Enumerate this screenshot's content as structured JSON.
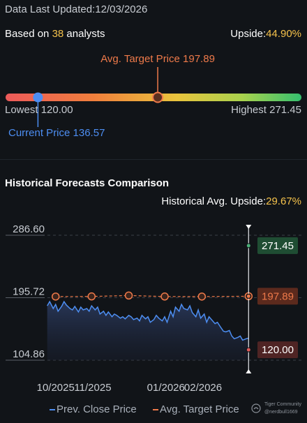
{
  "header": {
    "updated_label": "Data Last Updated:",
    "updated_date": "12/03/2026",
    "based_on_prefix": "Based on",
    "analyst_count": "38",
    "based_on_suffix": "analysts",
    "upside_label": "Upside:",
    "upside_value": "44.90%"
  },
  "range": {
    "avg_target_label": "Avg. Target Price",
    "avg_target_value": "197.89",
    "lowest_label": "Lowest",
    "lowest_value": "120.00",
    "highest_label": "Highest",
    "highest_value": "271.45",
    "current_label": "Current Price",
    "current_value": "136.57",
    "low": 120.0,
    "high": 271.45,
    "current": 136.57,
    "target": 197.89
  },
  "history": {
    "title": "Historical Forecasts Comparison",
    "upside_label": "Historical Avg. Upside:",
    "upside_value": "29.67%"
  },
  "legend": {
    "close_label": "Prev. Close Price",
    "target_label": "Avg. Target Price"
  },
  "watermark": {
    "line1": "Tiger Community",
    "line2": "@nerdbull1669"
  },
  "colors": {
    "close": "#4d8ef2",
    "target": "#ef7a4a",
    "high_badge": "#1f4d33",
    "target_badge": "#5c2a1d",
    "low_badge": "#4f2424"
  },
  "chart_data": {
    "type": "line",
    "ylim": [
      104.86,
      286.6
    ],
    "y_ticks": [
      "286.60",
      "195.72",
      "104.86"
    ],
    "x_ticks": [
      "10/2025",
      "11/2025",
      "01/2026",
      "02/2026"
    ],
    "x_tick_positions": [
      "2025-10-01",
      "2025-11-01",
      "2026-01-01",
      "2026-02-01"
    ],
    "x_range": [
      "2025-09-23",
      "2026-03-12"
    ],
    "series": [
      {
        "name": "Prev. Close Price",
        "dates": [
          "2025-09-24",
          "2025-09-26",
          "2025-09-29",
          "2025-10-01",
          "2025-10-03",
          "2025-10-06",
          "2025-10-08",
          "2025-10-10",
          "2025-10-13",
          "2025-10-15",
          "2025-10-17",
          "2025-10-20",
          "2025-10-22",
          "2025-10-24",
          "2025-10-27",
          "2025-10-29",
          "2025-10-31",
          "2025-11-03",
          "2025-11-05",
          "2025-11-07",
          "2025-11-10",
          "2025-11-12",
          "2025-11-14",
          "2025-11-17",
          "2025-11-19",
          "2025-11-21",
          "2025-11-24",
          "2025-11-26",
          "2025-11-28",
          "2025-12-01",
          "2025-12-03",
          "2025-12-05",
          "2025-12-08",
          "2025-12-10",
          "2025-12-12",
          "2025-12-15",
          "2025-12-17",
          "2025-12-19",
          "2025-12-22",
          "2025-12-24",
          "2025-12-26",
          "2025-12-29",
          "2025-12-31",
          "2026-01-02",
          "2026-01-05",
          "2026-01-07",
          "2026-01-09",
          "2026-01-12",
          "2026-01-14",
          "2026-01-16",
          "2026-01-19",
          "2026-01-21",
          "2026-01-23",
          "2026-01-26",
          "2026-01-28",
          "2026-01-30",
          "2026-02-02",
          "2026-02-04",
          "2026-02-06",
          "2026-02-09",
          "2026-02-11",
          "2026-02-13",
          "2026-02-16",
          "2026-02-18",
          "2026-02-20",
          "2026-02-23",
          "2026-02-25",
          "2026-02-27",
          "2026-03-02",
          "2026-03-04",
          "2026-03-06",
          "2026-03-09",
          "2026-03-11"
        ],
        "values": [
          184,
          190,
          180,
          186,
          176,
          183,
          190,
          185,
          180,
          178,
          183,
          175,
          182,
          178,
          180,
          176,
          184,
          178,
          182,
          172,
          176,
          170,
          175,
          168,
          172,
          170,
          166,
          168,
          165,
          170,
          168,
          164,
          166,
          162,
          170,
          165,
          168,
          160,
          164,
          170,
          166,
          162,
          168,
          160,
          176,
          168,
          182,
          176,
          186,
          180,
          178,
          184,
          174,
          168,
          178,
          166,
          172,
          160,
          168,
          162,
          158,
          160,
          152,
          147,
          146,
          148,
          140,
          136,
          138,
          140,
          134,
          136,
          137
        ]
      },
      {
        "name": "Avg. Target Price",
        "dates": [
          "2025-10-01",
          "2025-10-31",
          "2025-12-01",
          "2025-12-31",
          "2026-01-31",
          "2026-03-11"
        ],
        "values": [
          197.4,
          197.6,
          198.9,
          197.5,
          197.4,
          197.89
        ],
        "x_tick_target_count": 6
      }
    ],
    "end_labels": {
      "high": "271.45",
      "target": "197.89",
      "low": "120.00"
    },
    "end_values": {
      "high": 271.45,
      "target": 197.89,
      "low": 120.0
    }
  }
}
